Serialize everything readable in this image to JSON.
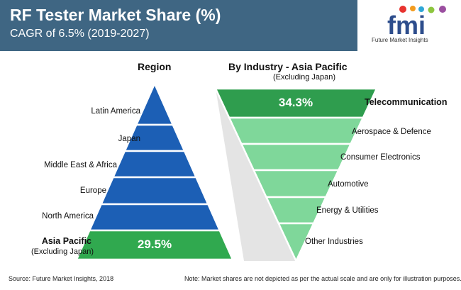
{
  "header": {
    "title": "RF Tester Market Share (%)",
    "subtitle": "CAGR of 6.5% (2019-2027)"
  },
  "logo": {
    "text": "fmi",
    "caption": "Future Market Insights"
  },
  "colors": {
    "banner": "#3f6683",
    "pyramid_blue": "#1c5fb5",
    "highlight_green": "#30a94f",
    "light_green": "#7fd79a",
    "dark_green": "#2f9d4e",
    "connector_gray": "#e4e4e4"
  },
  "chart_data": [
    {
      "type": "pyramid",
      "title": "Region",
      "segments": [
        {
          "label": "Latin America",
          "value": null
        },
        {
          "label": "Japan",
          "value": null
        },
        {
          "label": "Middle East & Africa",
          "value": null
        },
        {
          "label": "Europe",
          "value": null
        },
        {
          "label": "North America",
          "value": null
        },
        {
          "label": "Asia Pacific",
          "sublabel": "(Excluding Japan)",
          "value": 29.5,
          "value_label": "29.5%",
          "highlight": true
        }
      ]
    },
    {
      "type": "funnel",
      "title": "By Industry - Asia Pacific",
      "subtitle": "(Excluding Japan)",
      "segments": [
        {
          "label": "Telecommunication",
          "value": 34.3,
          "value_label": "34.3%",
          "highlight": true
        },
        {
          "label": "Aerospace & Defence",
          "value": null
        },
        {
          "label": "Consumer Electronics",
          "value": null
        },
        {
          "label": "Automotive",
          "value": null
        },
        {
          "label": "Energy & Utilities",
          "value": null
        },
        {
          "label": "Other Industries",
          "value": null
        }
      ]
    }
  ],
  "footer": {
    "source": "Source: Future Market Insights, 2018",
    "note": "Note: Market shares are not depicted as per the actual scale and are only for illustration purposes."
  }
}
